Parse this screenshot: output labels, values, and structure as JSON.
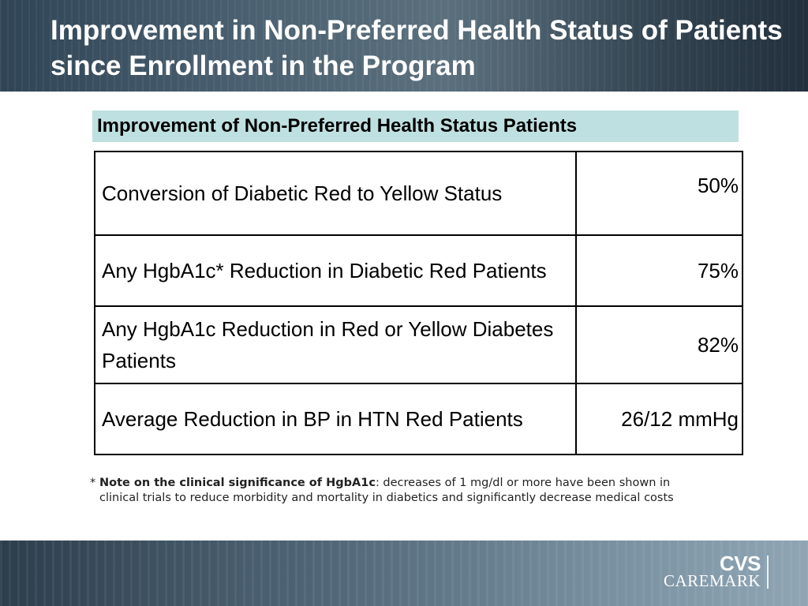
{
  "slide": {
    "title": "Improvement in Non-Preferred Health Status of Patients since Enrollment in the Program",
    "subtitle": "Improvement of Non-Preferred Health Status Patients",
    "table": {
      "rows": [
        {
          "label": "Conversion of Diabetic Red to Yellow Status",
          "value": "50%"
        },
        {
          "label": "Any HgbA1c* Reduction in Diabetic Red Patients",
          "value": "75%"
        },
        {
          "label": "Any HgbA1c Reduction in Red or Yellow Diabetes Patients",
          "value": "82%"
        },
        {
          "label": "Average Reduction in BP in HTN Red Patients",
          "value": "26/12 mmHg"
        }
      ]
    },
    "footnote": {
      "mark": "*",
      "lead": "Note on the clinical significance of HgbA1c",
      "text": ": decreases of 1 mg/dl or more have been shown in clinical trials to reduce morbidity and mortality in diabetics and significantly decrease medical costs"
    },
    "logo": {
      "line1": "CVS",
      "line2": "CAREMARK"
    }
  },
  "colors": {
    "subtitle_bg": "#bfe0e0",
    "header": "#3b4f5f",
    "title_text": "#ffffff"
  }
}
